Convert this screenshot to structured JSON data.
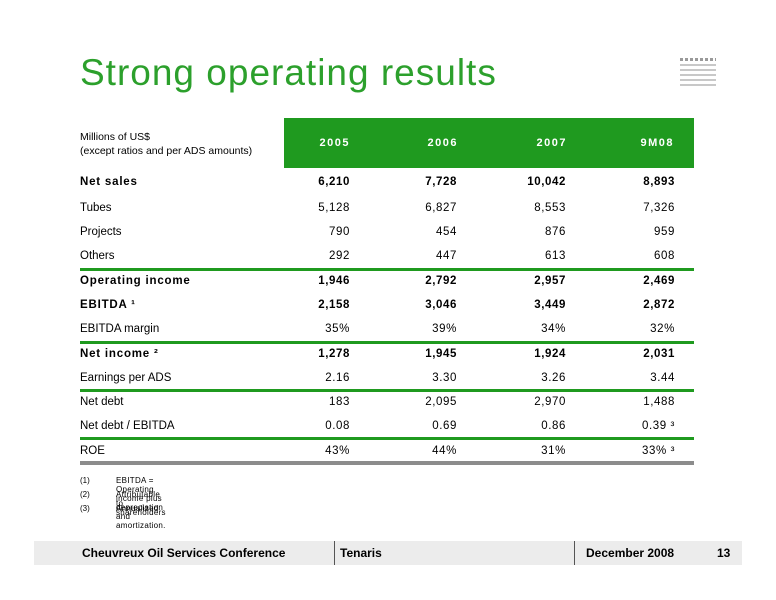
{
  "slide": {
    "title": "Strong operating results",
    "units_line1": "Millions of US$",
    "units_line2": "(except ratios and per ADS amounts)",
    "columns": [
      "2005",
      "2006",
      "2007",
      "9M08"
    ],
    "rows": [
      {
        "label": "Net sales",
        "bold": true,
        "values": [
          "6,210",
          "7,728",
          "10,042",
          "8,893"
        ]
      },
      {
        "label": "Tubes",
        "bold": false,
        "values": [
          "5,128",
          "6,827",
          "8,553",
          "7,326"
        ]
      },
      {
        "label": "Projects",
        "bold": false,
        "values": [
          "790",
          "454",
          "876",
          "959"
        ]
      },
      {
        "label": "Others",
        "bold": false,
        "values": [
          "292",
          "447",
          "613",
          "608"
        ]
      },
      {
        "label": "Operating income",
        "bold": true,
        "values": [
          "1,946",
          "2,792",
          "2,957",
          "2,469"
        ]
      },
      {
        "label": "EBITDA ¹",
        "bold": true,
        "values": [
          "2,158",
          "3,046",
          "3,449",
          "2,872"
        ]
      },
      {
        "label": "EBITDA margin",
        "bold": false,
        "values": [
          "35%",
          "39%",
          "34%",
          "32%"
        ]
      },
      {
        "label": "Net income ²",
        "bold": true,
        "values": [
          "1,278",
          "1,945",
          "1,924",
          "2,031"
        ]
      },
      {
        "label": "Earnings per ADS",
        "bold": false,
        "values": [
          "2.16",
          "3.30",
          "3.26",
          "3.44"
        ]
      },
      {
        "label": "Net debt",
        "bold": false,
        "values": [
          "183",
          "2,095",
          "2,970",
          "1,488"
        ]
      },
      {
        "label": "Net debt / EBITDA",
        "bold": false,
        "values": [
          "0.08",
          "0.69",
          "0.86",
          "0.39 ³"
        ]
      },
      {
        "label": "ROE",
        "bold": false,
        "values": [
          "43%",
          "44%",
          "31%",
          "33% ³"
        ]
      }
    ],
    "notes": [
      {
        "num": "(1)",
        "text": "EBITDA = Operating income plus depreciation and amortization."
      },
      {
        "num": "(2)",
        "text": "Attributable to shareholders"
      },
      {
        "num": "(3)",
        "text": "Annualized"
      }
    ]
  },
  "footer": {
    "conference": "Cheuvreux Oil Services Conference",
    "company": "Tenaris",
    "date": "December 2008",
    "page": "13"
  },
  "colors": {
    "accent_green": "#1f9a1f",
    "title_green": "#2ca02c",
    "footer_bg": "#ececec"
  }
}
